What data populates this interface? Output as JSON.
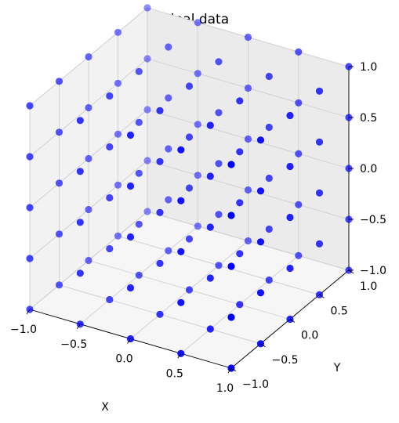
{
  "chart_data": {
    "type": "scatter",
    "title": "Original data",
    "xlabel": "X",
    "ylabel": "Y",
    "zlabel": "",
    "xlim": [
      -1.0,
      1.0
    ],
    "ylim": [
      -1.0,
      1.0
    ],
    "zlim": [
      -1.0,
      1.0
    ],
    "x_ticks": [
      "−1.0",
      "−0.5",
      "0.0",
      "0.5",
      "1.0"
    ],
    "y_ticks": [
      "−1.0",
      "−0.5",
      "0.0",
      "0.5",
      "1.0"
    ],
    "z_ticks": [
      "−1.0",
      "−0.5",
      "0.0",
      "0.5",
      "1.0"
    ],
    "grid": true,
    "marker_color": "#0000ff",
    "grid_values": [
      -1.0,
      -0.5,
      0.0,
      0.5,
      1.0
    ],
    "description": "Regular 5×5×5 grid of points with x, y, z each in {-1.0, -0.5, 0.0, 0.5, 1.0}"
  }
}
